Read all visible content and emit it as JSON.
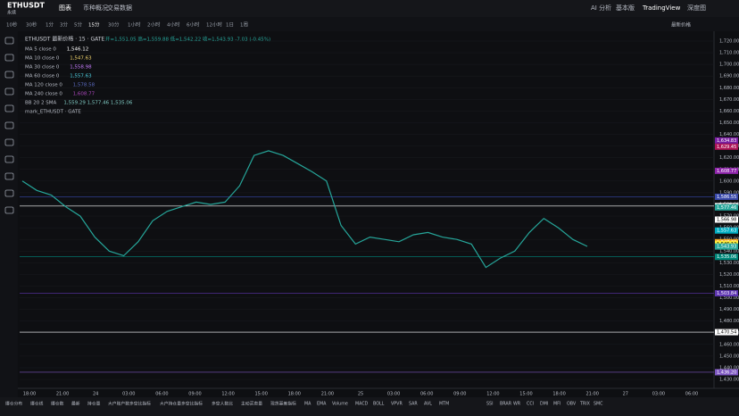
{
  "header": {
    "symbol": "ETHUSDT",
    "subtitle": "永续",
    "tabs": [
      "图表",
      "币种概况",
      "交易数据"
    ],
    "right": [
      "AI 分析",
      "基本版",
      "TradingView",
      "深度图"
    ]
  },
  "toolbar": {
    "intervals": [
      "10秒",
      "30秒",
      "1分",
      "3分",
      "5分",
      "15分",
      "30分",
      "1小时",
      "2小时",
      "4小时",
      "6小时",
      "12小时",
      "1日",
      "1周"
    ],
    "price_type": "最新价格"
  },
  "legend": {
    "title": "ETHUSDT 最新价格 · 15 · GATE",
    "ohlc": "开=1,551.05 高=1,559.88 低=1,542.22 收=1,543.93 -7.03 (-0.45%)",
    "indicators": [
      {
        "name": "MA 5 close 0",
        "value": "1,546.12",
        "color": "#ffffff"
      },
      {
        "name": "MA 10 close 0",
        "value": "1,547.63",
        "color": "#f5d76e"
      },
      {
        "name": "MA 30 close 0",
        "value": "1,558.98",
        "color": "#c77dff"
      },
      {
        "name": "MA 60 close 0",
        "value": "1,557.63",
        "color": "#4dd0e1"
      },
      {
        "name": "MA 120 close 0",
        "value": "1,578.58",
        "color": "#5c6bc0"
      },
      {
        "name": "MA 240 close 0",
        "value": "1,608.77",
        "color": "#ab47bc"
      },
      {
        "name": "BB 20 2 SMA",
        "value": "1,559.29 1,577.46 1,535.06",
        "color": "#80cbc4"
      }
    ],
    "mark": "mark_ETHUSDT · GATE"
  },
  "chart": {
    "type": "line",
    "color": "#26a69a",
    "ylim": [
      1422.4,
      1728.4
    ],
    "close": [
      1600,
      1592,
      1588,
      1578,
      1570,
      1552,
      1540,
      1536,
      1548,
      1566,
      1574,
      1578,
      1582,
      1580,
      1582,
      1596,
      1622,
      1626,
      1622,
      1615,
      1608,
      1600,
      1562,
      1546,
      1552,
      1550,
      1548,
      1554,
      1556,
      1552,
      1550,
      1546,
      1526,
      1534,
      1540,
      1556,
      1568,
      1560,
      1550,
      1544
    ],
    "yticks": [
      {
        "value": 1430,
        "label": "1,430.00"
      },
      {
        "value": 1440,
        "label": "1,440.00"
      },
      {
        "value": 1450,
        "label": "1,450.00"
      },
      {
        "value": 1460,
        "label": "1,460.00"
      },
      {
        "value": 1470,
        "label": "1,470.00"
      },
      {
        "value": 1480,
        "label": "1,480.00"
      },
      {
        "value": 1490,
        "label": "1,490.00"
      },
      {
        "value": 1500,
        "label": "1,500.00"
      },
      {
        "value": 1510,
        "label": "1,510.00"
      },
      {
        "value": 1520,
        "label": "1,520.00"
      },
      {
        "value": 1530,
        "label": "1,530.00"
      },
      {
        "value": 1540,
        "label": "1,540.00"
      },
      {
        "value": 1550,
        "label": "1,550.00"
      },
      {
        "value": 1560,
        "label": "1,560.00"
      },
      {
        "value": 1570,
        "label": "1,570.00"
      },
      {
        "value": 1580,
        "label": "1,580.00"
      },
      {
        "value": 1590,
        "label": "1,590.00"
      },
      {
        "value": 1600,
        "label": "1,600.00"
      },
      {
        "value": 1610,
        "label": "1,610.00"
      },
      {
        "value": 1620,
        "label": "1,620.00"
      },
      {
        "value": 1630,
        "label": "1,630.00"
      },
      {
        "value": 1640,
        "label": "1,640.00"
      },
      {
        "value": 1650,
        "label": "1,650.00"
      },
      {
        "value": 1660,
        "label": "1,660.00"
      },
      {
        "value": 1670,
        "label": "1,670.00"
      },
      {
        "value": 1680,
        "label": "1,680.00"
      },
      {
        "value": 1690,
        "label": "1,690.00"
      },
      {
        "value": 1700,
        "label": "1,700.00"
      },
      {
        "value": 1710,
        "label": "1,710.00"
      },
      {
        "value": 1720,
        "label": "1,720.00"
      }
    ],
    "xticks": [
      "18:00",
      "21:00",
      "24",
      "03:00",
      "06:00",
      "09:00",
      "12:00",
      "15:00",
      "18:00",
      "21:00",
      "25",
      "03:00",
      "06:00",
      "09:00",
      "12:00",
      "15:00",
      "18:00",
      "21:00",
      "27",
      "03:00",
      "06:00"
    ],
    "price_labels": [
      {
        "value": 1634.83,
        "label": "1,634.83",
        "color": "#7b1fa2",
        "line": false
      },
      {
        "value": 1629.45,
        "label": "1,629.45",
        "color": "#ad1457",
        "line": false
      },
      {
        "value": 1608.77,
        "label": "1,608.77",
        "color": "#8e24aa",
        "line": false
      },
      {
        "value": 1586.55,
        "label": "1,586.55",
        "color": "#3949ab",
        "line": true
      },
      {
        "value": 1578.57,
        "label": "1,578.57",
        "color": "#ffffff",
        "line": true
      },
      {
        "value": 1577.46,
        "label": "1,577.46",
        "color": "#26a69a",
        "line": false
      },
      {
        "value": 1566.98,
        "label": "1,566.98",
        "color": "#ffffff",
        "line": false
      },
      {
        "value": 1557.63,
        "label": "1,557.63",
        "color": "#00acc1",
        "line": false
      },
      {
        "value": 1547.63,
        "label": "1,547.63",
        "color": "#f9a825",
        "line": false
      },
      {
        "value": 1546.12,
        "label": "1,546.12",
        "color": "#ffeb3b",
        "line": false
      },
      {
        "value": 1543.93,
        "label": "1,543.93",
        "color": "#26a69a",
        "line": false
      },
      {
        "value": 1535.06,
        "label": "1,535.06",
        "color": "#00897b",
        "line": true
      },
      {
        "value": 1503.84,
        "label": "1,503.84",
        "color": "#5e35b1",
        "line": true
      },
      {
        "value": 1470.54,
        "label": "1,470.54",
        "color": "#ffffff",
        "line": true
      },
      {
        "value": 1436.2,
        "label": "1,436.20",
        "color": "#7e57c2",
        "line": true
      }
    ]
  },
  "bottom": {
    "indicators": [
      "爆仓分布",
      "爆仓线",
      "爆仓数",
      "最新",
      "持仓量",
      "大户账户数多空比指标",
      "大户持仓量多空比指标",
      "多空人数比",
      "主动买卖量",
      "现货基差指标",
      "MA",
      "EMA",
      "Volume",
      "MACD",
      "BOLL",
      "VPVR",
      "SAR",
      "AVL",
      "MTM"
    ],
    "right": [
      "SSI",
      "BRAR",
      "WR",
      "CCI",
      "DMI",
      "MFI",
      "OBV",
      "TRIX",
      "SMC"
    ]
  }
}
